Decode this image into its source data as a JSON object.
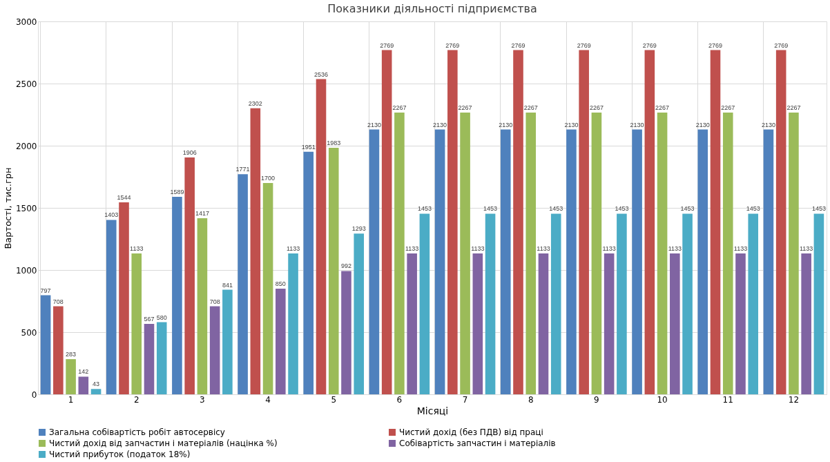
{
  "chart_data": {
    "type": "bar",
    "title": "Показники діяльності підприємства",
    "xlabel": "Місяці",
    "ylabel": "Вартості, тис.грн",
    "categories": [
      "1",
      "2",
      "3",
      "4",
      "5",
      "6",
      "7",
      "8",
      "9",
      "10",
      "11",
      "12"
    ],
    "series": [
      {
        "name": "Загальна собівартість робіт  автосервісу",
        "color": "#4f81bd",
        "values": [
          797,
          1403,
          1589,
          1771,
          1951,
          2130,
          2130,
          2130,
          2130,
          2130,
          2130,
          2130
        ]
      },
      {
        "name": "Чистий дохід (без ПДВ) від праці",
        "color": "#c0504d",
        "values": [
          708,
          1544,
          1906,
          2302,
          2536,
          2769,
          2769,
          2769,
          2769,
          2769,
          2769,
          2769
        ]
      },
      {
        "name": "Чистий дохід від запчастин і матеріалів (націнка %)",
        "color": "#9bbb59",
        "values": [
          283,
          1133,
          1417,
          1700,
          1983,
          2267,
          2267,
          2267,
          2267,
          2267,
          2267,
          2267
        ]
      },
      {
        "name": "Собівартість запчастин і матеріалів",
        "color": "#8064a2",
        "values": [
          142,
          567,
          708,
          850,
          992,
          1133,
          1133,
          1133,
          1133,
          1133,
          1133,
          1133
        ]
      },
      {
        "name": "Чистий прибуток (податок 18%)",
        "color": "#4bacc6",
        "values": [
          43,
          580,
          841,
          1133,
          1293,
          1453,
          1453,
          1453,
          1453,
          1453,
          1453,
          1453
        ]
      }
    ],
    "ylim": [
      0,
      3000.0
    ],
    "yticks": [
      0,
      500,
      1000,
      1500,
      2000,
      2500,
      3000
    ],
    "grid": true,
    "legend": "bottom",
    "data_labels": true
  }
}
